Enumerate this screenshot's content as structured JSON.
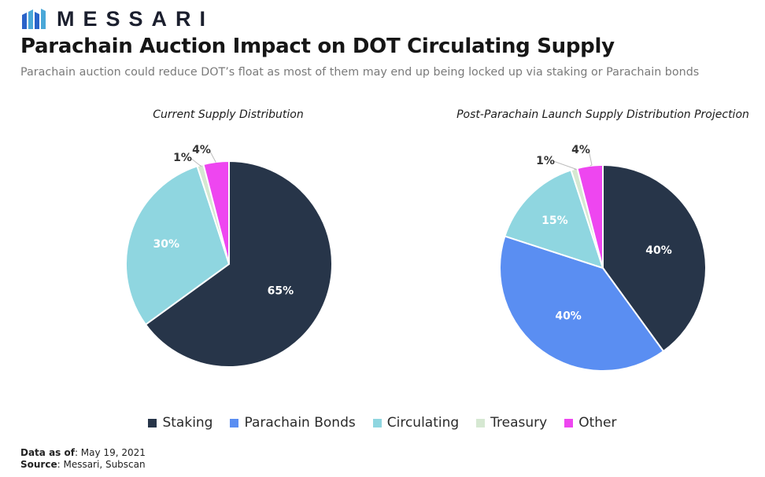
{
  "brand": {
    "name": "MESSARI",
    "logo_icon": "messari-logo-icon"
  },
  "title": "Parachain Auction Impact on DOT Circulating Supply",
  "subtitle": "Parachain auction could reduce DOT’s float as most of them may end up being locked up via staking or Parachain bonds",
  "colors": {
    "Staking": "#273549",
    "Parachain Bonds": "#5a8ef2",
    "Circulating": "#8fd6e0",
    "Treasury": "#d6e8d2",
    "Other": "#ee46f0"
  },
  "legend": {
    "placement": "bottom-center",
    "items": [
      "Staking",
      "Parachain Bonds",
      "Circulating",
      "Treasury",
      "Other"
    ]
  },
  "chart_data": [
    {
      "type": "pie",
      "title": "Current Supply Distribution",
      "categories": [
        "Staking",
        "Parachain Bonds",
        "Circulating",
        "Treasury",
        "Other"
      ],
      "values": [
        65,
        0,
        30,
        1,
        4
      ],
      "labels": [
        "65%",
        "",
        "30%",
        "1%",
        "4%"
      ]
    },
    {
      "type": "pie",
      "title": "Post-Parachain Launch Supply Distribution Projection",
      "categories": [
        "Staking",
        "Parachain Bonds",
        "Circulating",
        "Treasury",
        "Other"
      ],
      "values": [
        40,
        40,
        15,
        1,
        4
      ],
      "labels": [
        "40%",
        "40%",
        "15%",
        "1%",
        "4%"
      ]
    }
  ],
  "footer": {
    "data_as_of_label": "Data as of",
    "data_as_of_value": ": May 19, 2021",
    "source_label": "Source",
    "source_value": ": Messari, Subscan"
  }
}
